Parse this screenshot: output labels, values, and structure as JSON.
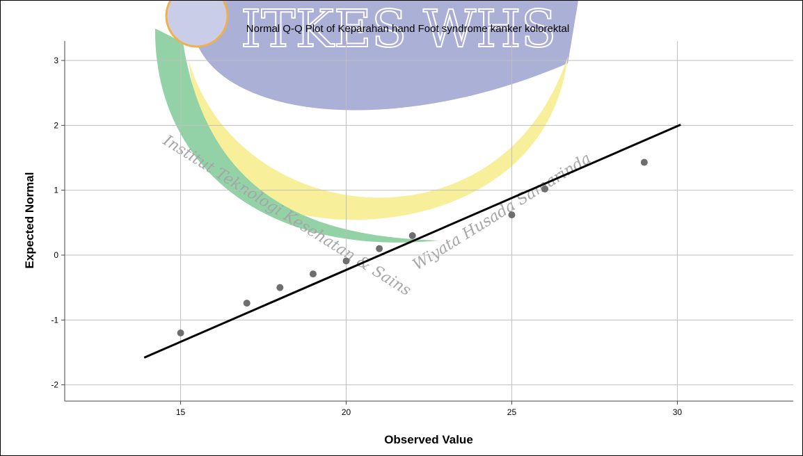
{
  "watermark": {
    "logo_text": "ITKES WHS",
    "institution_left": "Institut Teknologi Kesehatan & Sains",
    "institution_right": "Wiyata Husada Samarinda"
  },
  "colors": {
    "points": "#6e6e6e",
    "reference_line": "#000000",
    "grid": "#bfbfbf",
    "axis": "#444444",
    "watermark_blue": "#aab0d6",
    "watermark_yellow": "#f7ef9a",
    "watermark_green": "#93d2a6"
  },
  "chart_data": {
    "type": "scatter",
    "title": "Normal Q-Q Plot of Keparahan hand Foot syndrome kanker kolorektal",
    "xlabel": "Observed Value",
    "ylabel": "Expected Normal",
    "xlim": [
      11.5,
      33.5
    ],
    "ylim": [
      -2.25,
      3.3
    ],
    "x_ticks": [
      15,
      20,
      25,
      30
    ],
    "y_ticks": [
      -2,
      -1,
      0,
      1,
      2,
      3
    ],
    "x_tick_labels": [
      "15",
      "20",
      "25",
      "30"
    ],
    "y_tick_labels": [
      "-2",
      "-1",
      "0",
      "1",
      "2",
      "3"
    ],
    "grid": true,
    "points": [
      {
        "x": 15,
        "y": -1.2
      },
      {
        "x": 17,
        "y": -0.74
      },
      {
        "x": 18,
        "y": -0.5
      },
      {
        "x": 19,
        "y": -0.29
      },
      {
        "x": 20,
        "y": -0.09
      },
      {
        "x": 21,
        "y": 0.1
      },
      {
        "x": 22,
        "y": 0.3
      },
      {
        "x": 25,
        "y": 0.62
      },
      {
        "x": 26,
        "y": 1.02
      },
      {
        "x": 29,
        "y": 1.43
      }
    ],
    "reference_line": {
      "x": [
        13.9,
        30.1
      ],
      "y": [
        -1.58,
        2.01
      ]
    }
  }
}
